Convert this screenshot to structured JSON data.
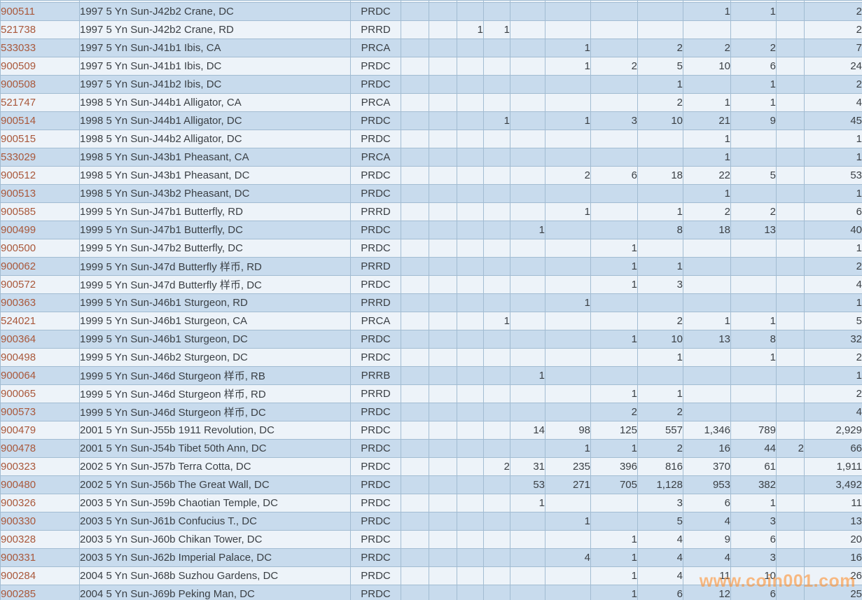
{
  "colors": {
    "row_blue": "#c8dbed",
    "row_white": "#edf3f9",
    "grid_line": "#a2bcd2",
    "id_text": "#a9583b",
    "body_text": "#3a3f44",
    "watermark_orange": "#ff8e2b"
  },
  "watermark": {
    "text": "www.coin001.com"
  },
  "table": {
    "rows": [
      {
        "id": "900511",
        "desc": "1997 5 Yn Sun-J42b2 Crane, DC",
        "code": "PRDC",
        "grades": [
          "",
          "",
          "",
          "",
          "",
          "",
          "",
          "",
          "1",
          "1",
          ""
        ],
        "total": "2"
      },
      {
        "id": "521738",
        "desc": "1997 5 Yn Sun-J42b2 Crane, RD",
        "code": "PRRD",
        "grades": [
          "",
          "",
          "1",
          "1",
          "",
          "",
          "",
          "",
          "",
          "",
          ""
        ],
        "total": "2"
      },
      {
        "id": "533033",
        "desc": "1997 5 Yn Sun-J41b1 Ibis, CA",
        "code": "PRCA",
        "grades": [
          "",
          "",
          "",
          "",
          "",
          "1",
          "",
          "2",
          "2",
          "2",
          ""
        ],
        "total": "7"
      },
      {
        "id": "900509",
        "desc": "1997 5 Yn Sun-J41b1 Ibis, DC",
        "code": "PRDC",
        "grades": [
          "",
          "",
          "",
          "",
          "",
          "1",
          "2",
          "5",
          "10",
          "6",
          ""
        ],
        "total": "24"
      },
      {
        "id": "900508",
        "desc": "1997 5 Yn Sun-J41b2 Ibis, DC",
        "code": "PRDC",
        "grades": [
          "",
          "",
          "",
          "",
          "",
          "",
          "",
          "1",
          "",
          "1",
          ""
        ],
        "total": "2"
      },
      {
        "id": "521747",
        "desc": "1998 5 Yn Sun-J44b1 Alligator, CA",
        "code": "PRCA",
        "grades": [
          "",
          "",
          "",
          "",
          "",
          "",
          "",
          "2",
          "1",
          "1",
          ""
        ],
        "total": "4"
      },
      {
        "id": "900514",
        "desc": "1998 5 Yn Sun-J44b1 Alligator, DC",
        "code": "PRDC",
        "grades": [
          "",
          "",
          "",
          "1",
          "",
          "1",
          "3",
          "10",
          "21",
          "9",
          ""
        ],
        "total": "45"
      },
      {
        "id": "900515",
        "desc": "1998 5 Yn Sun-J44b2 Alligator, DC",
        "code": "PRDC",
        "grades": [
          "",
          "",
          "",
          "",
          "",
          "",
          "",
          "",
          "1",
          "",
          ""
        ],
        "total": "1"
      },
      {
        "id": "533029",
        "desc": "1998 5 Yn Sun-J43b1 Pheasant, CA",
        "code": "PRCA",
        "grades": [
          "",
          "",
          "",
          "",
          "",
          "",
          "",
          "",
          "1",
          "",
          ""
        ],
        "total": "1"
      },
      {
        "id": "900512",
        "desc": "1998 5 Yn Sun-J43b1 Pheasant, DC",
        "code": "PRDC",
        "grades": [
          "",
          "",
          "",
          "",
          "",
          "2",
          "6",
          "18",
          "22",
          "5",
          ""
        ],
        "total": "53"
      },
      {
        "id": "900513",
        "desc": "1998 5 Yn Sun-J43b2 Pheasant, DC",
        "code": "PRDC",
        "grades": [
          "",
          "",
          "",
          "",
          "",
          "",
          "",
          "",
          "1",
          "",
          ""
        ],
        "total": "1"
      },
      {
        "id": "900585",
        "desc": "1999 5 Yn Sun-J47b1 Butterfly, RD",
        "code": "PRRD",
        "grades": [
          "",
          "",
          "",
          "",
          "",
          "1",
          "",
          "1",
          "2",
          "2",
          ""
        ],
        "total": "6"
      },
      {
        "id": "900499",
        "desc": "1999 5 Yn Sun-J47b1 Butterfly, DC",
        "code": "PRDC",
        "grades": [
          "",
          "",
          "",
          "",
          "1",
          "",
          "",
          "8",
          "18",
          "13",
          ""
        ],
        "total": "40"
      },
      {
        "id": "900500",
        "desc": "1999 5 Yn Sun-J47b2 Butterfly, DC",
        "code": "PRDC",
        "grades": [
          "",
          "",
          "",
          "",
          "",
          "",
          "1",
          "",
          "",
          "",
          ""
        ],
        "total": "1"
      },
      {
        "id": "900062",
        "desc": "1999 5 Yn Sun-J47d Butterfly 样币, RD",
        "code": "PRRD",
        "grades": [
          "",
          "",
          "",
          "",
          "",
          "",
          "1",
          "1",
          "",
          "",
          ""
        ],
        "total": "2"
      },
      {
        "id": "900572",
        "desc": "1999 5 Yn Sun-J47d Butterfly 样币, DC",
        "code": "PRDC",
        "grades": [
          "",
          "",
          "",
          "",
          "",
          "",
          "1",
          "3",
          "",
          "",
          ""
        ],
        "total": "4"
      },
      {
        "id": "900363",
        "desc": "1999 5 Yn Sun-J46b1 Sturgeon, RD",
        "code": "PRRD",
        "grades": [
          "",
          "",
          "",
          "",
          "",
          "1",
          "",
          "",
          "",
          "",
          ""
        ],
        "total": "1"
      },
      {
        "id": "524021",
        "desc": "1999 5 Yn Sun-J46b1 Sturgeon, CA",
        "code": "PRCA",
        "grades": [
          "",
          "",
          "",
          "1",
          "",
          "",
          "",
          "2",
          "1",
          "1",
          ""
        ],
        "total": "5"
      },
      {
        "id": "900364",
        "desc": "1999 5 Yn Sun-J46b1 Sturgeon, DC",
        "code": "PRDC",
        "grades": [
          "",
          "",
          "",
          "",
          "",
          "",
          "1",
          "10",
          "13",
          "8",
          ""
        ],
        "total": "32"
      },
      {
        "id": "900498",
        "desc": "1999 5 Yn Sun-J46b2 Sturgeon, DC",
        "code": "PRDC",
        "grades": [
          "",
          "",
          "",
          "",
          "",
          "",
          "",
          "1",
          "",
          "1",
          ""
        ],
        "total": "2"
      },
      {
        "id": "900064",
        "desc": "1999 5 Yn Sun-J46d Sturgeon 样币, RB",
        "code": "PRRB",
        "grades": [
          "",
          "",
          "",
          "",
          "1",
          "",
          "",
          "",
          "",
          "",
          ""
        ],
        "total": "1"
      },
      {
        "id": "900065",
        "desc": "1999 5 Yn Sun-J46d Sturgeon 样币, RD",
        "code": "PRRD",
        "grades": [
          "",
          "",
          "",
          "",
          "",
          "",
          "1",
          "1",
          "",
          "",
          ""
        ],
        "total": "2"
      },
      {
        "id": "900573",
        "desc": "1999 5 Yn Sun-J46d Sturgeon 样币, DC",
        "code": "PRDC",
        "grades": [
          "",
          "",
          "",
          "",
          "",
          "",
          "2",
          "2",
          "",
          "",
          ""
        ],
        "total": "4"
      },
      {
        "id": "900479",
        "desc": "2001 5 Yn Sun-J55b 1911 Revolution, DC",
        "code": "PRDC",
        "grades": [
          "",
          "",
          "",
          "",
          "14",
          "98",
          "125",
          "557",
          "1,346",
          "789",
          ""
        ],
        "total": "2,929"
      },
      {
        "id": "900478",
        "desc": "2001 5 Yn Sun-J54b Tibet 50th Ann, DC",
        "code": "PRDC",
        "grades": [
          "",
          "",
          "",
          "",
          "",
          "1",
          "1",
          "2",
          "16",
          "44",
          "2"
        ],
        "total": "66"
      },
      {
        "id": "900323",
        "desc": "2002 5 Yn Sun-J57b Terra Cotta, DC",
        "code": "PRDC",
        "grades": [
          "",
          "",
          "",
          "2",
          "31",
          "235",
          "396",
          "816",
          "370",
          "61",
          ""
        ],
        "total": "1,911"
      },
      {
        "id": "900480",
        "desc": "2002 5 Yn Sun-J56b The Great Wall, DC",
        "code": "PRDC",
        "grades": [
          "",
          "",
          "",
          "",
          "53",
          "271",
          "705",
          "1,128",
          "953",
          "382",
          ""
        ],
        "total": "3,492"
      },
      {
        "id": "900326",
        "desc": "2003 5 Yn Sun-J59b Chaotian Temple, DC",
        "code": "PRDC",
        "grades": [
          "",
          "",
          "",
          "",
          "1",
          "",
          "",
          "3",
          "6",
          "1",
          ""
        ],
        "total": "11"
      },
      {
        "id": "900330",
        "desc": "2003 5 Yn Sun-J61b Confucius T., DC",
        "code": "PRDC",
        "grades": [
          "",
          "",
          "",
          "",
          "",
          "1",
          "",
          "5",
          "4",
          "3",
          ""
        ],
        "total": "13"
      },
      {
        "id": "900328",
        "desc": "2003 5 Yn Sun-J60b Chikan Tower, DC",
        "code": "PRDC",
        "grades": [
          "",
          "",
          "",
          "",
          "",
          "",
          "1",
          "4",
          "9",
          "6",
          ""
        ],
        "total": "20"
      },
      {
        "id": "900331",
        "desc": "2003 5 Yn Sun-J62b Imperial Palace, DC",
        "code": "PRDC",
        "grades": [
          "",
          "",
          "",
          "",
          "",
          "4",
          "1",
          "4",
          "4",
          "3",
          ""
        ],
        "total": "16"
      },
      {
        "id": "900284",
        "desc": "2004 5 Yn Sun-J68b Suzhou Gardens, DC",
        "code": "PRDC",
        "grades": [
          "",
          "",
          "",
          "",
          "",
          "",
          "1",
          "4",
          "11",
          "10",
          ""
        ],
        "total": "26"
      },
      {
        "id": "900285",
        "desc": "2004 5 Yn Sun-J69b Peking Man, DC",
        "code": "PRDC",
        "grades": [
          "",
          "",
          "",
          "",
          "",
          "",
          "1",
          "6",
          "12",
          "6",
          ""
        ],
        "total": "25"
      }
    ]
  }
}
